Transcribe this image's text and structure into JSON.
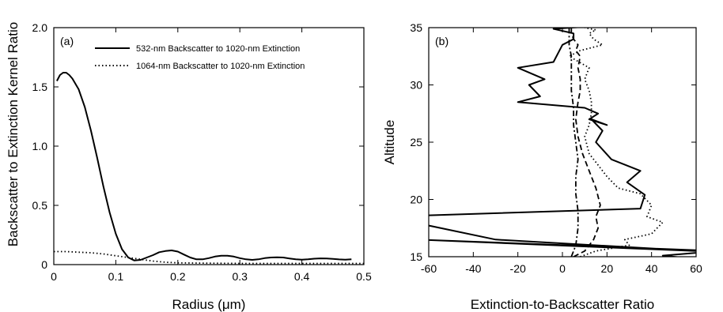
{
  "chart_data": [
    {
      "type": "line",
      "panel_label": "(a)",
      "xlabel": "Radius (μm)",
      "ylabel": "Backscatter to Extinction Kernel Ratio",
      "xlim": [
        0,
        0.5
      ],
      "ylim": [
        0,
        2.0
      ],
      "xticks": [
        "0",
        "0.1",
        "0.2",
        "0.3",
        "0.4",
        "0.5"
      ],
      "yticks": [
        "0",
        "0.5",
        "1.0",
        "1.5",
        "2.0"
      ],
      "legend_position": "top-right",
      "series": [
        {
          "name": "532-nm Backscatter to 1020-nm Extinction",
          "style": "solid",
          "x": [
            0.005,
            0.01,
            0.015,
            0.02,
            0.025,
            0.03,
            0.04,
            0.05,
            0.06,
            0.07,
            0.08,
            0.09,
            0.1,
            0.11,
            0.12,
            0.13,
            0.14,
            0.15,
            0.16,
            0.17,
            0.18,
            0.19,
            0.2,
            0.21,
            0.22,
            0.23,
            0.24,
            0.25,
            0.26,
            0.27,
            0.28,
            0.29,
            0.3,
            0.31,
            0.32,
            0.33,
            0.34,
            0.35,
            0.36,
            0.37,
            0.38,
            0.39,
            0.4,
            0.41,
            0.42,
            0.43,
            0.44,
            0.45,
            0.46,
            0.47,
            0.48
          ],
          "y": [
            1.55,
            1.6,
            1.62,
            1.62,
            1.6,
            1.57,
            1.48,
            1.33,
            1.13,
            0.9,
            0.66,
            0.44,
            0.26,
            0.13,
            0.06,
            0.035,
            0.04,
            0.06,
            0.08,
            0.105,
            0.115,
            0.12,
            0.11,
            0.085,
            0.06,
            0.045,
            0.045,
            0.055,
            0.068,
            0.075,
            0.075,
            0.068,
            0.055,
            0.045,
            0.04,
            0.045,
            0.055,
            0.06,
            0.062,
            0.06,
            0.052,
            0.045,
            0.042,
            0.045,
            0.05,
            0.053,
            0.052,
            0.048,
            0.044,
            0.042,
            0.045
          ]
        },
        {
          "name": "1064-nm Backscatter to 1020-nm Extinction",
          "style": "dotted",
          "x": [
            0.0,
            0.02,
            0.04,
            0.06,
            0.08,
            0.1,
            0.12,
            0.14,
            0.16,
            0.18,
            0.2,
            0.25,
            0.3,
            0.35,
            0.4,
            0.45,
            0.5
          ],
          "y": [
            0.11,
            0.11,
            0.105,
            0.1,
            0.09,
            0.075,
            0.06,
            0.045,
            0.03,
            0.02,
            0.015,
            0.012,
            0.01,
            0.01,
            0.01,
            0.01,
            0.01
          ]
        }
      ]
    },
    {
      "type": "line",
      "panel_label": "(b)",
      "xlabel": "Extinction-to-Backscatter Ratio",
      "ylabel": "Altitude",
      "xlim": [
        -60,
        60
      ],
      "ylim": [
        15,
        35
      ],
      "xticks": [
        "-60",
        "-40",
        "-20",
        "0",
        "20",
        "40",
        "60"
      ],
      "yticks": [
        "15",
        "20",
        "25",
        "30",
        "35"
      ],
      "series": [
        {
          "style": "solid",
          "x": [
            60,
            45,
            70,
            -65,
            60,
            -30,
            -62,
            -62,
            35,
            37,
            29,
            35,
            22,
            15,
            18,
            13,
            20,
            12,
            16,
            10,
            -20,
            -10,
            -15,
            -8,
            -20,
            -4,
            0,
            5,
            5,
            -4,
            20
          ],
          "y": [
            14.8,
            15.1,
            15.5,
            16.5,
            15.5,
            16.5,
            17.8,
            18.6,
            19.2,
            20.4,
            21.5,
            22.5,
            23.5,
            25.0,
            26.0,
            27.0,
            26.5,
            27.0,
            27.5,
            28.0,
            28.5,
            29.0,
            30.0,
            30.5,
            31.5,
            32.0,
            33.5,
            34.0,
            34.5,
            34.9,
            35.2
          ]
        },
        {
          "style": "dotted",
          "x": [
            8,
            15,
            30,
            28,
            40,
            45,
            38,
            40,
            35,
            25,
            20,
            16,
            12,
            10,
            12,
            13,
            13,
            12,
            10,
            11,
            12,
            3,
            8,
            18,
            14,
            12,
            15,
            10
          ],
          "y": [
            15.0,
            15.5,
            16.0,
            16.5,
            17.0,
            18.0,
            18.5,
            19.5,
            20.5,
            21.0,
            22.0,
            23.0,
            24.0,
            25.5,
            26.5,
            27.5,
            28.5,
            29.5,
            30.5,
            31.0,
            31.5,
            32.5,
            33.0,
            33.5,
            34.0,
            34.5,
            34.8,
            35.0
          ]
        },
        {
          "style": "dashed",
          "x": [
            5,
            10,
            14,
            16,
            15,
            17,
            15,
            12,
            9,
            7,
            6,
            7,
            8,
            8,
            7,
            8,
            6,
            7,
            5,
            4,
            4
          ],
          "y": [
            15.0,
            15.5,
            16.5,
            17.5,
            18.5,
            19.5,
            21.0,
            22.5,
            24.0,
            25.5,
            27.0,
            28.5,
            29.5,
            30.5,
            31.5,
            32.5,
            33.0,
            33.5,
            34.0,
            34.5,
            35.0
          ]
        },
        {
          "style": "dashdot",
          "x": [
            4,
            6,
            7,
            7,
            6,
            6,
            7,
            6,
            5,
            5,
            4,
            4,
            4,
            3,
            3,
            3
          ],
          "y": [
            15.0,
            16.0,
            17.5,
            19.0,
            20.5,
            22.0,
            23.5,
            25.0,
            26.5,
            28.0,
            29.5,
            31.0,
            32.5,
            33.5,
            34.5,
            35.0
          ]
        }
      ]
    }
  ]
}
